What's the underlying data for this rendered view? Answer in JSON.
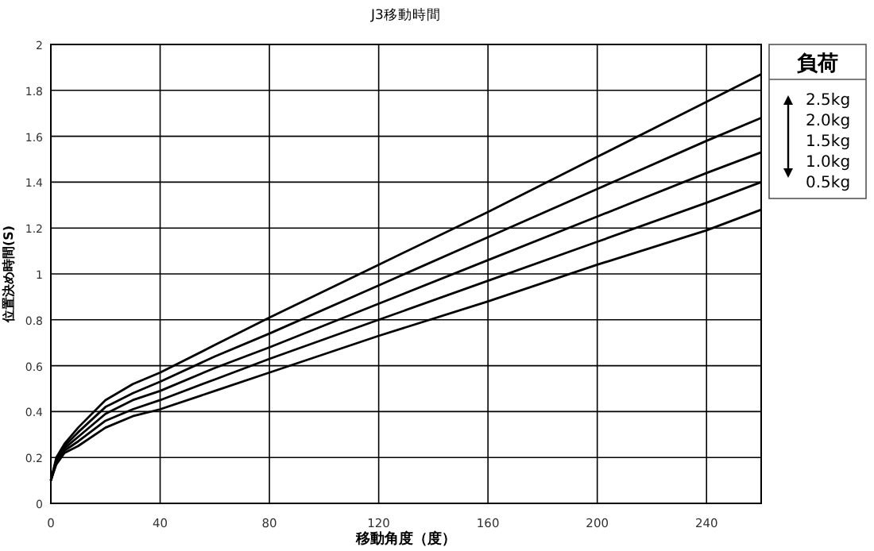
{
  "chart_data": {
    "type": "line",
    "title": "J3移動時間",
    "xlabel": "移動角度（度）",
    "ylabel": "位置決め時間(S)",
    "legend_title": "負荷",
    "xlim": [
      0,
      260
    ],
    "xticks": [
      0,
      40,
      80,
      120,
      160,
      200,
      240
    ],
    "ylim": [
      0,
      2
    ],
    "yticks": [
      0,
      0.2,
      0.4,
      0.6,
      0.8,
      1,
      1.2,
      1.4,
      1.6,
      1.8,
      2
    ],
    "grid": true,
    "legend": "right",
    "marker": "none",
    "line_style": "solid",
    "x": [
      0,
      2,
      5,
      10,
      20,
      30,
      40,
      60,
      80,
      120,
      160,
      200,
      240,
      260
    ],
    "series": [
      {
        "name": "2.5kg",
        "color": "#000000",
        "values": [
          0.1,
          0.2,
          0.26,
          0.33,
          0.45,
          0.52,
          0.57,
          0.69,
          0.81,
          1.04,
          1.27,
          1.51,
          1.75,
          1.87
        ]
      },
      {
        "name": "2.0kg",
        "color": "#000000",
        "values": [
          0.1,
          0.19,
          0.25,
          0.31,
          0.42,
          0.48,
          0.53,
          0.64,
          0.74,
          0.95,
          1.16,
          1.37,
          1.58,
          1.68
        ]
      },
      {
        "name": "1.5kg",
        "color": "#000000",
        "values": [
          0.1,
          0.18,
          0.24,
          0.29,
          0.39,
          0.45,
          0.49,
          0.59,
          0.68,
          0.87,
          1.06,
          1.25,
          1.44,
          1.53
        ]
      },
      {
        "name": "1.0kg",
        "color": "#000000",
        "values": [
          0.1,
          0.18,
          0.23,
          0.27,
          0.36,
          0.41,
          0.45,
          0.54,
          0.63,
          0.8,
          0.97,
          1.14,
          1.31,
          1.4
        ]
      },
      {
        "name": "0.5kg",
        "color": "#000000",
        "values": [
          0.1,
          0.17,
          0.22,
          0.25,
          0.33,
          0.38,
          0.41,
          0.49,
          0.57,
          0.73,
          0.88,
          1.04,
          1.19,
          1.28
        ]
      }
    ]
  }
}
